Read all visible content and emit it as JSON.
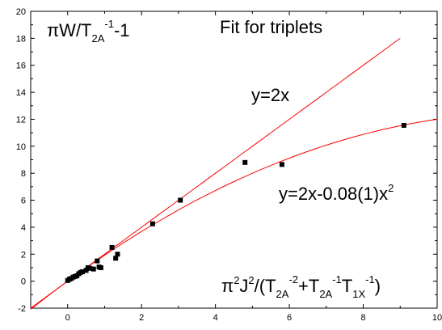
{
  "chart_data": {
    "type": "scatter",
    "title": "Fit for triplets",
    "ylabel": "πW/T2A-1-1",
    "xlabel": "π2J2/(T2A-2+T2A-1T1X-1)",
    "xlim": [
      -1,
      10
    ],
    "ylim": [
      -2,
      20
    ],
    "x_ticks": [
      0,
      2,
      4,
      6,
      8,
      10
    ],
    "y_ticks": [
      -2,
      0,
      2,
      4,
      6,
      8,
      10,
      12,
      14,
      16,
      18,
      20
    ],
    "grid": false,
    "points": [
      {
        "x": 0.0,
        "y": 0.05
      },
      {
        "x": 0.05,
        "y": 0.15
      },
      {
        "x": 0.1,
        "y": 0.2
      },
      {
        "x": 0.15,
        "y": 0.3
      },
      {
        "x": 0.2,
        "y": 0.35
      },
      {
        "x": 0.25,
        "y": 0.4
      },
      {
        "x": 0.3,
        "y": 0.55
      },
      {
        "x": 0.35,
        "y": 0.65
      },
      {
        "x": 0.4,
        "y": 0.7
      },
      {
        "x": 0.5,
        "y": 0.8
      },
      {
        "x": 0.55,
        "y": 1.0
      },
      {
        "x": 0.6,
        "y": 0.95
      },
      {
        "x": 0.7,
        "y": 0.9
      },
      {
        "x": 0.8,
        "y": 1.5
      },
      {
        "x": 0.85,
        "y": 1.05
      },
      {
        "x": 0.9,
        "y": 1.0
      },
      {
        "x": 1.2,
        "y": 2.5
      },
      {
        "x": 1.3,
        "y": 1.7
      },
      {
        "x": 1.35,
        "y": 2.0
      },
      {
        "x": 2.3,
        "y": 4.25
      },
      {
        "x": 3.05,
        "y": 6.0
      },
      {
        "x": 4.8,
        "y": 8.8
      },
      {
        "x": 5.8,
        "y": 8.65
      },
      {
        "x": 9.1,
        "y": 11.55
      }
    ],
    "series": [
      {
        "name": "y=2x",
        "formula": "linear",
        "a": 2,
        "b": 0,
        "x_range": [
          -1,
          9
        ]
      },
      {
        "name": "y=2x-0.08(1)x2",
        "formula": "quadratic",
        "a": 2,
        "b": -0.08,
        "x_range": [
          -1,
          10
        ]
      }
    ],
    "marker_color": "#000000",
    "line_color": "#ff0000"
  }
}
